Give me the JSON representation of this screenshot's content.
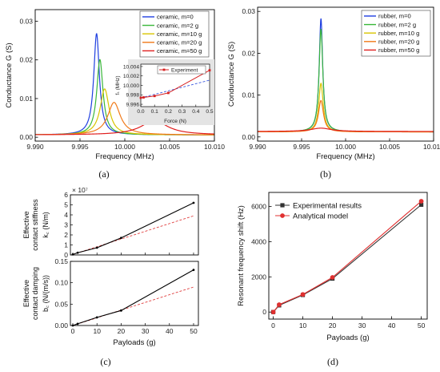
{
  "chart_data": [
    {
      "id": "a",
      "caption": "(a)",
      "type": "line",
      "xlabel": "Frequency (MHz)",
      "ylabel": "Conductance G (S)",
      "xlim": [
        9.99,
        10.01
      ],
      "ylim": [
        -0.001,
        0.033
      ],
      "xticks": [
        "9.990",
        "9.995",
        "10.000",
        "10.005",
        "10.010"
      ],
      "yticks": [
        "0.00",
        "0.01",
        "0.02",
        "0.03"
      ],
      "legend_position": "top-right",
      "series": [
        {
          "name": "ceramic, m=0",
          "color": "#1f3fe0",
          "f0": 9.99685,
          "peak": 0.0268,
          "base": 0.0006,
          "hw": 0.00038
        },
        {
          "name": "ceramic, m=2 g",
          "color": "#3ab73a",
          "f0": 9.99722,
          "peak": 0.0201,
          "base": 0.0006,
          "hw": 0.00042
        },
        {
          "name": "ceramic, m=10 g",
          "color": "#d9c400",
          "f0": 9.99775,
          "peak": 0.0125,
          "base": 0.0006,
          "hw": 0.0006
        },
        {
          "name": "ceramic, m=20 g",
          "color": "#f07a1a",
          "f0": 9.9988,
          "peak": 0.009,
          "base": 0.0006,
          "hw": 0.00085
        },
        {
          "name": "ceramic, m=50 g",
          "color": "#e02020",
          "f0": 10.0033,
          "peak": 0.0043,
          "base": 0.0006,
          "hw": 0.0018
        }
      ],
      "inset": {
        "type": "line",
        "xlabel": "Force (N)",
        "ylabel": "fₛ (MHz)",
        "xlim": [
          0.0,
          0.5
        ],
        "ylim": [
          9.9955,
          10.0045
        ],
        "xticks": [
          "0.0",
          "0.1",
          "0.2",
          "0.3",
          "0.4",
          "0.5"
        ],
        "yticks": [
          "9.996",
          "9.998",
          "10.000",
          "10.002",
          "10.004"
        ],
        "legend": "Experiment",
        "experiment": {
          "x": [
            0.0,
            0.02,
            0.1,
            0.2,
            0.5
          ],
          "y": [
            9.99738,
            9.99745,
            9.99775,
            9.9984,
            10.0032
          ]
        },
        "fit": {
          "x": [
            0.0,
            0.5
          ],
          "y": [
            9.99735,
            10.0011
          ]
        }
      }
    },
    {
      "id": "b",
      "caption": "(b)",
      "type": "line",
      "xlabel": "Frequency (MHz)",
      "ylabel": "Conductance G (S)",
      "xlim": [
        9.99,
        10.01
      ],
      "ylim": [
        -0.001,
        0.031
      ],
      "xticks": [
        "9.990",
        "9.995",
        "10.000",
        "10.005",
        "10.010"
      ],
      "yticks": [
        "0.00",
        "0.01",
        "0.02",
        "0.03"
      ],
      "legend_position": "top-right",
      "series": [
        {
          "name": "rubber, m=0",
          "color": "#1f3fe0",
          "f0": 9.9972,
          "peak": 0.0283,
          "base": 0.0012,
          "hw": 0.00024
        },
        {
          "name": "rubber, m=2 g",
          "color": "#3ab73a",
          "f0": 9.9972,
          "peak": 0.0258,
          "base": 0.0012,
          "hw": 0.00026
        },
        {
          "name": "rubber, m=10 g",
          "color": "#d9c400",
          "f0": 9.9972,
          "peak": 0.0128,
          "base": 0.0012,
          "hw": 0.0003
        },
        {
          "name": "rubber, m=20 g",
          "color": "#f07a1a",
          "f0": 9.9972,
          "peak": 0.0087,
          "base": 0.0012,
          "hw": 0.00034
        },
        {
          "name": "rubber, m=50 g",
          "color": "#e02020",
          "f0": 9.9972,
          "peak": 0.0021,
          "base": 0.0013,
          "hw": 0.0014
        }
      ]
    },
    {
      "id": "c",
      "caption": "(c)",
      "type": "line",
      "xlabel": "Payloads (g)",
      "xlim": [
        -1,
        52
      ],
      "xticks": [
        "0",
        "10",
        "20",
        "30",
        "40",
        "50"
      ],
      "panels": [
        {
          "ylabel_lines": [
            "Effective",
            "contact stiffness",
            "k꜀ (N/m)"
          ],
          "ylim": [
            0,
            6
          ],
          "yticks": [
            "0",
            "1",
            "2",
            "3",
            "4",
            "5",
            "6"
          ],
          "exponent": "× 10⁷",
          "measured": {
            "x": [
              0,
              2,
              10,
              20,
              50
            ],
            "y": [
              0.05,
              0.22,
              0.72,
              1.7,
              5.2
            ]
          },
          "linear": {
            "x": [
              0,
              50
            ],
            "y": [
              0.05,
              3.9
            ]
          }
        },
        {
          "ylabel_lines": [
            "Effective",
            "contact damping",
            "b꜀ (N/(m/s))"
          ],
          "ylim": [
            0,
            0.15
          ],
          "yticks": [
            "0.00",
            "0.05",
            "0.10",
            "0.15"
          ],
          "measured": {
            "x": [
              0,
              2,
              10,
              20,
              50
            ],
            "y": [
              0.0,
              0.004,
              0.019,
              0.035,
              0.13
            ]
          },
          "linear": {
            "x": [
              0,
              50
            ],
            "y": [
              0.0,
              0.09
            ]
          }
        }
      ]
    },
    {
      "id": "d",
      "caption": "(d)",
      "type": "line",
      "xlabel": "Payloads (g)",
      "ylabel": "Resonant frequency shift (Hz)",
      "xlim": [
        -1.5,
        52
      ],
      "ylim": [
        -400,
        6800
      ],
      "xticks": [
        "0",
        "10",
        "20",
        "30",
        "40",
        "50"
      ],
      "yticks": [
        "0",
        "2000",
        "4000",
        "6000"
      ],
      "legend_position": "top-left",
      "series": [
        {
          "name": "Experimental results",
          "color": "#333333",
          "marker": "square",
          "x": [
            0,
            2,
            10,
            20,
            50
          ],
          "y": [
            0,
            380,
            970,
            1900,
            6100
          ]
        },
        {
          "name": "Analytical model",
          "color": "#e03030",
          "marker": "circle",
          "x": [
            0,
            2,
            10,
            20,
            50
          ],
          "y": [
            0,
            420,
            1000,
            1970,
            6300
          ]
        }
      ]
    }
  ]
}
